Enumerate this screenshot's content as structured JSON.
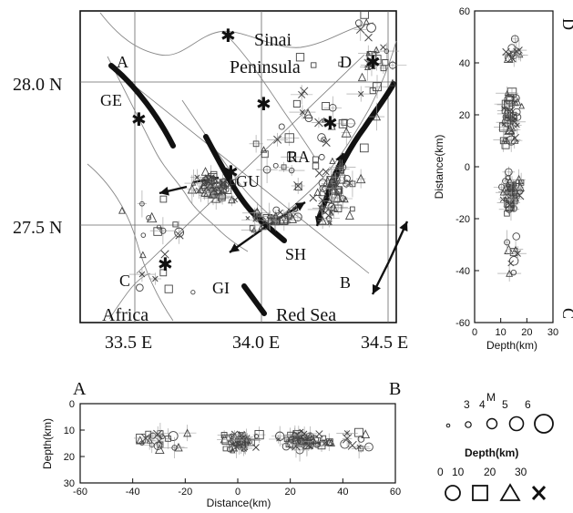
{
  "map": {
    "lat_labels": [
      "28.0 N",
      "27.5 N"
    ],
    "lon_labels": [
      "33.5 E",
      "34.0 E",
      "34.5 E"
    ],
    "place_labels": {
      "sinai": "Sinai",
      "peninsula": "Peninsula",
      "africa": "Africa",
      "red_sea": "Red Sea",
      "ge": "GE",
      "gu": "GU",
      "ra": "RA",
      "sh": "SH",
      "gi": "GI"
    },
    "profile_endpoints": {
      "a": "A",
      "b": "B",
      "c": "C",
      "d": "D"
    }
  },
  "section_ab": {
    "end_left": "A",
    "end_right": "B",
    "xlabel": "Distance(km)",
    "ylabel": "Depth(km)",
    "xticks": [
      "-60",
      "-40",
      "-20",
      "0",
      "20",
      "40",
      "60"
    ],
    "yticks": [
      "0",
      "10",
      "20",
      "30"
    ]
  },
  "section_cd": {
    "end_top": "D",
    "end_bottom": "C",
    "ylabel": "Distance(km)",
    "xlabel": "Depth(km)",
    "yticks": [
      "60",
      "40",
      "20",
      "0",
      "-20",
      "-40",
      "-60"
    ],
    "xticks": [
      "0",
      "10",
      "20",
      "30"
    ]
  },
  "legend": {
    "mag_title": "M",
    "mag_values": [
      "3",
      "4",
      "5",
      "6"
    ],
    "depth_title": "Depth(km)",
    "depth_values": [
      "0",
      "10",
      "20",
      "30"
    ]
  }
}
